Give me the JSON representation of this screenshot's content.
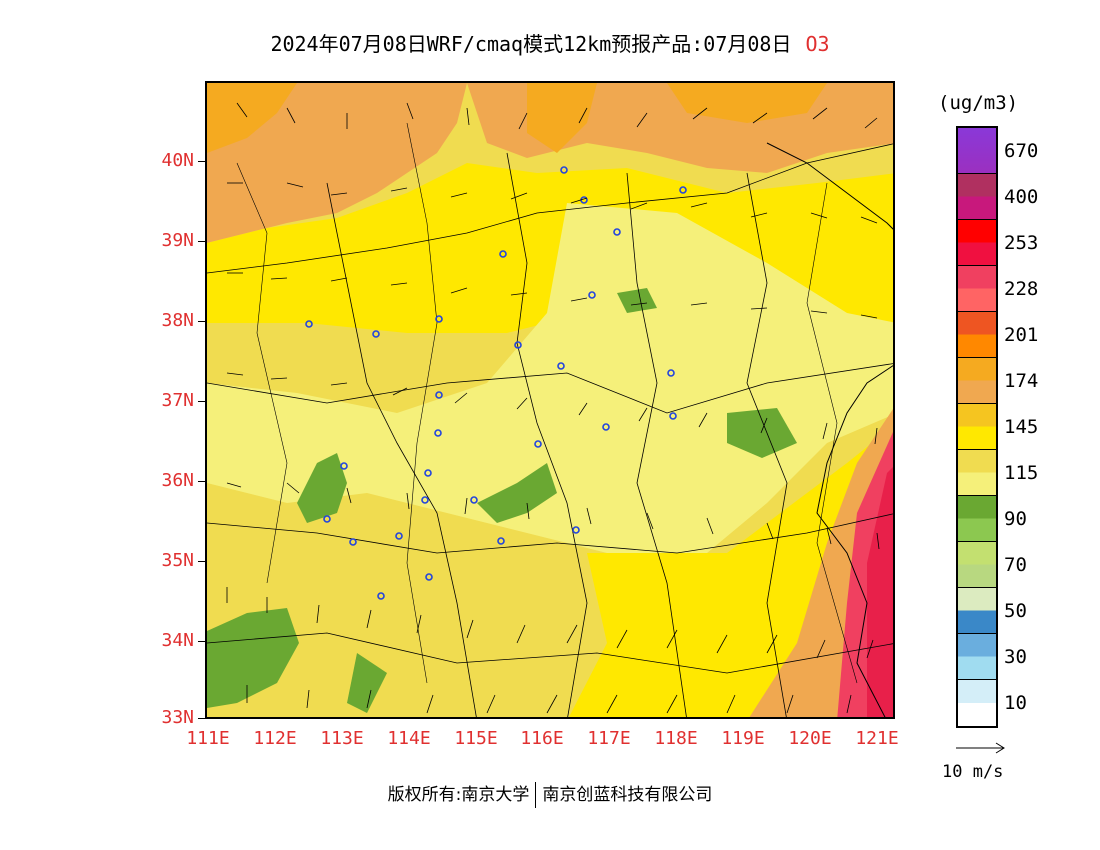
{
  "title": {
    "text": "2024年07月08日WRF/cmaq模式12km预报产品:07月08日",
    "species": "O3"
  },
  "map": {
    "lat_labels": [
      "40N",
      "39N",
      "38N",
      "37N",
      "36N",
      "35N",
      "34N",
      "33N"
    ],
    "lon_labels": [
      "111E",
      "112E",
      "113E",
      "114E",
      "115E",
      "116E",
      "117E",
      "118E",
      "119E",
      "120E",
      "121E"
    ]
  },
  "legend": {
    "unit": "(ug/m3)",
    "labels": [
      "670",
      "400",
      "253",
      "228",
      "201",
      "174",
      "145",
      "115",
      "90",
      "70",
      "50",
      "30",
      "10"
    ],
    "colors": [
      "#8a38d8",
      "#9b30c0",
      "#b03060",
      "#c8187c",
      "#ff0000",
      "#f01040",
      "#f04060",
      "#ff6464",
      "#ee5522",
      "#ff8800",
      "#f5aa20",
      "#f0a850",
      "#f5c520",
      "#ffe800",
      "#f0dc50",
      "#f5f07a",
      "#6aa832",
      "#8cc850",
      "#c3e070",
      "#b8d880",
      "#dcebc0",
      "#3a88c8",
      "#6aaede",
      "#a0dcf0",
      "#d4eef8",
      "#ffffff"
    ]
  },
  "wind_scale": {
    "label": "10 m/s"
  },
  "footer": {
    "copyright": "版权所有:南京大学",
    "company": "南京创蓝科技有限公司"
  }
}
